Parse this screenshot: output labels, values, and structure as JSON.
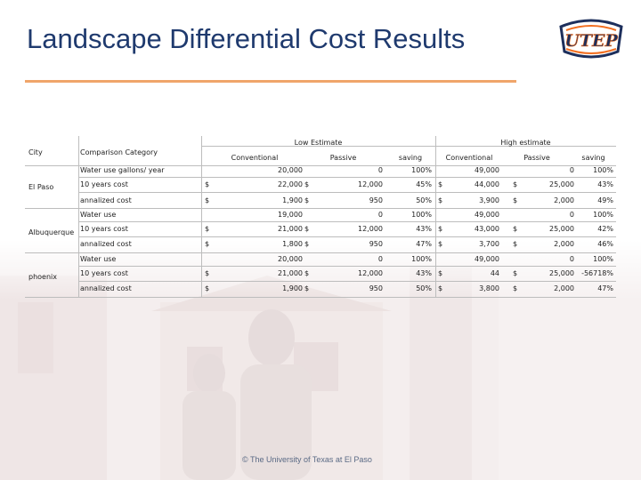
{
  "slide": {
    "title": "Landscape Differential Cost Results",
    "logo_text": "UTEP",
    "footer": "© The University of Texas at El Paso"
  },
  "table": {
    "headers": {
      "city": "City",
      "category": "Comparison Category",
      "low_group": "Low Estimate",
      "high_group": "High estimate",
      "conventional": "Conventional",
      "passive": "Passive",
      "saving": "saving"
    },
    "currency": "$",
    "cities": [
      {
        "name": "El Paso",
        "rows": [
          {
            "category": "Water use gallons/ year",
            "low_conv": "20,000",
            "low_pass": "0",
            "low_saving": "100%",
            "high_conv": "49,000",
            "high_pass": "0",
            "high_saving": "100%",
            "dollars": false
          },
          {
            "category": "10 years cost",
            "low_conv": "22,000",
            "low_pass": "12,000",
            "low_saving": "45%",
            "high_conv": "44,000",
            "high_pass": "25,000",
            "high_saving": "43%",
            "dollars": true
          },
          {
            "category": "annalized cost",
            "low_conv": "1,900",
            "low_pass": "950",
            "low_saving": "50%",
            "high_conv": "3,900",
            "high_pass": "2,000",
            "high_saving": "49%",
            "dollars": true
          }
        ]
      },
      {
        "name": "Albuquerque",
        "rows": [
          {
            "category": "Water use",
            "low_conv": "19,000",
            "low_pass": "0",
            "low_saving": "100%",
            "high_conv": "49,000",
            "high_pass": "0",
            "high_saving": "100%",
            "dollars": false
          },
          {
            "category": "10 years cost",
            "low_conv": "21,000",
            "low_pass": "12,000",
            "low_saving": "43%",
            "high_conv": "43,000",
            "high_pass": "25,000",
            "high_saving": "42%",
            "dollars": true
          },
          {
            "category": "annalized cost",
            "low_conv": "1,800",
            "low_pass": "950",
            "low_saving": "47%",
            "high_conv": "3,700",
            "high_pass": "2,000",
            "high_saving": "46%",
            "dollars": true
          }
        ]
      },
      {
        "name": "phoenix",
        "rows": [
          {
            "category": "Water use",
            "low_conv": "20,000",
            "low_pass": "0",
            "low_saving": "100%",
            "high_conv": "49,000",
            "high_pass": "0",
            "high_saving": "100%",
            "dollars": false
          },
          {
            "category": "10 years cost",
            "low_conv": "21,000",
            "low_pass": "12,000",
            "low_saving": "43%",
            "high_conv": "44",
            "high_pass": "25,000",
            "high_saving": "-56718%",
            "dollars": true
          },
          {
            "category": "annalized cost",
            "low_conv": "1,900",
            "low_pass": "950",
            "low_saving": "50%",
            "high_conv": "3,800",
            "high_pass": "2,000",
            "high_saving": "47%",
            "dollars": true
          }
        ]
      }
    ]
  },
  "colors": {
    "title": "#1f3a6e",
    "accent_rule": "#f0a56a",
    "logo_navy": "#1d2f5c",
    "logo_orange": "#f26f21"
  }
}
